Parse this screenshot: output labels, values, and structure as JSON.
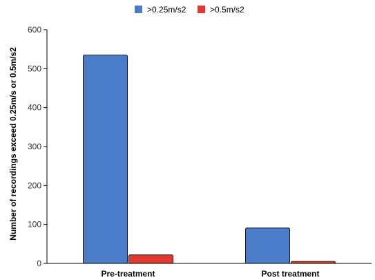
{
  "chart_data": {
    "type": "bar",
    "title": "",
    "xlabel": "",
    "ylabel": "Number of recordings exceed 0.25m/s or 0.5m/s2",
    "categories": [
      "Pre-treatment",
      "Post treatment"
    ],
    "series": [
      {
        "name": ">0.25m/s2",
        "color": "#4a7cc9",
        "values": [
          535,
          91
        ]
      },
      {
        "name": ">0.5m/s2",
        "color": "#e03a2f",
        "values": [
          22,
          5
        ]
      }
    ],
    "ylim": [
      0,
      600
    ],
    "yticks": [
      0,
      100,
      200,
      300,
      400,
      500,
      600
    ],
    "grid": false,
    "legend_position": "top-center"
  }
}
